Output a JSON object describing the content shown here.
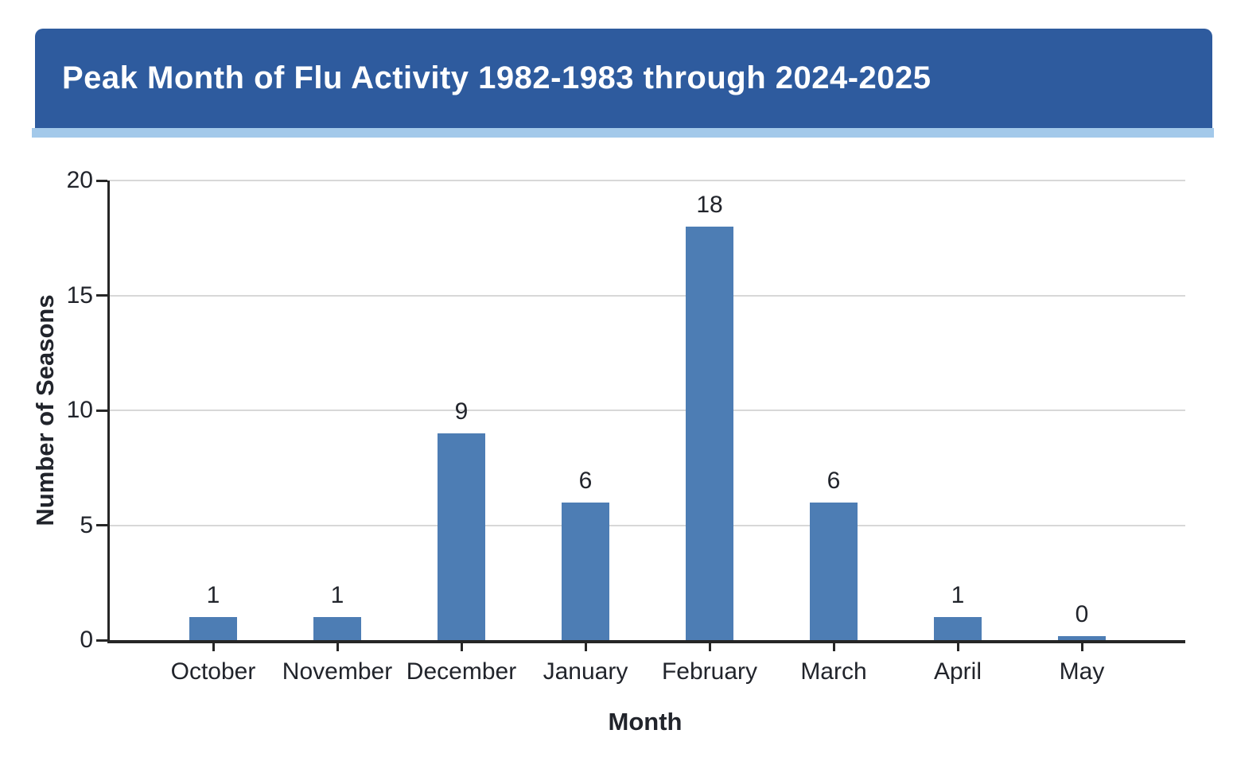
{
  "header": {
    "title": "Peak Month of Flu Activity 1982-1983 through 2024-2025"
  },
  "chart_data": {
    "type": "bar",
    "title": "Peak Month of Flu Activity 1982-1983 through 2024-2025",
    "categories": [
      "October",
      "November",
      "December",
      "January",
      "February",
      "March",
      "April",
      "May"
    ],
    "values": [
      1,
      1,
      9,
      6,
      18,
      6,
      1,
      0
    ],
    "xlabel": "Month",
    "ylabel": "Number of Seasons",
    "ylim": [
      0,
      20
    ],
    "yticks": [
      0,
      5,
      10,
      15,
      20
    ],
    "grid": "horizontal",
    "legend": "none",
    "value_labels": "above-bars",
    "colors": {
      "bar": "#4d7db4",
      "header_background": "#2e5b9e",
      "header_accent_stripe": "#a3c9ea",
      "title_text": "#ffffff",
      "gridline": "#d8d8d8",
      "axis": "#262626",
      "text": "#21242b",
      "page_background": "#ffffff"
    }
  }
}
